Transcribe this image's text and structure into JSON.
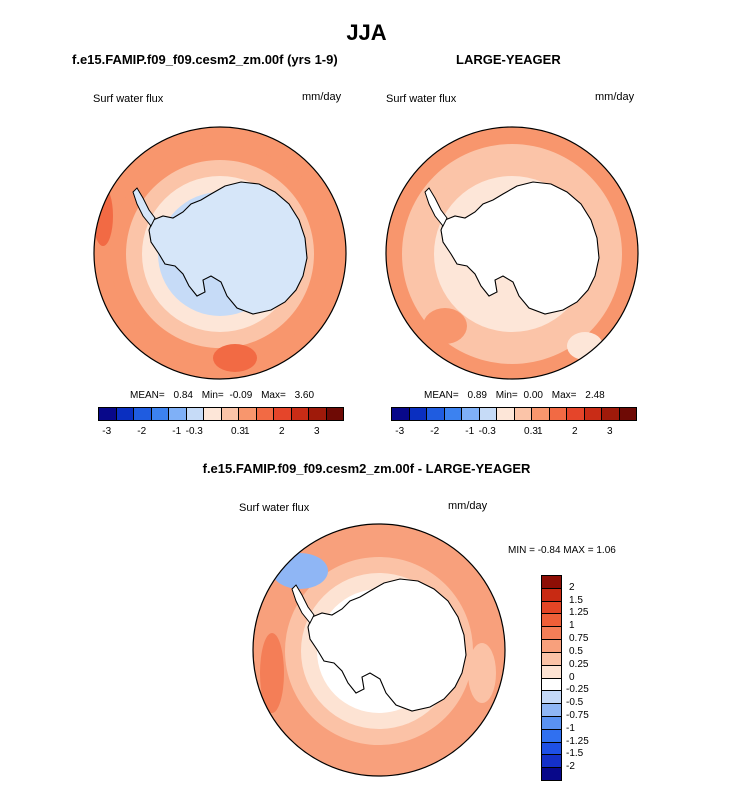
{
  "page": {
    "title": "JJA",
    "left_case": "f.e15.FAMIP.f09_f09.cesm2_zm.00f (yrs 1-9)",
    "right_case": "LARGE-YEAGER",
    "diff_case": "f.e15.FAMIP.f09_f09.cesm2_zm.00f - LARGE-YEAGER"
  },
  "colors": {
    "abs_scale": [
      "#08088a",
      "#0a2fc0",
      "#1f5ce0",
      "#3c82f0",
      "#7fb0f7",
      "#c6dbf7",
      "#fde6d8",
      "#fbc4a8",
      "#f8966d",
      "#f26a44",
      "#e5452a",
      "#c92c16",
      "#9f1a0a",
      "#6e0a05"
    ],
    "diff_scale": [
      "#08088a",
      "#1430c8",
      "#1e50e6",
      "#3070f0",
      "#5a92f2",
      "#8fb6f5",
      "#c4d8f7",
      "#ffffff",
      "#fde3d3",
      "#fbc2a6",
      "#f8a07c",
      "#f47e57",
      "#ef5f38",
      "#e44525",
      "#c82a13",
      "#8e0e05"
    ],
    "coast": "#000000",
    "land_model": "#d6e6f9",
    "land_obs": "#ffffff"
  },
  "panels": [
    {
      "id": "model",
      "var_label": "Surf water flux",
      "units": "mm/day",
      "mean_label": "MEAN=",
      "mean": "0.84",
      "min_label": "Min=",
      "min": "-0.09",
      "max_label": "Max=",
      "max": "3.60"
    },
    {
      "id": "obs",
      "var_label": "Surf water flux",
      "units": "mm/day",
      "mean_label": "MEAN=",
      "mean": "0.89",
      "min_label": "Min=",
      "min": "0.00",
      "max_label": "Max=",
      "max": "2.48"
    },
    {
      "id": "diff",
      "var_label": "Surf water flux",
      "units": "mm/day",
      "minmax_text": "MIN =  -0.84 MAX =   1.06"
    }
  ],
  "colorbar_abs": {
    "ticks": [
      "-3",
      "-2",
      "-1",
      "-0.3",
      "0.3",
      "1",
      "2",
      "3"
    ]
  },
  "colorbar_diff": {
    "ticks": [
      "2",
      "1.5",
      "1.25",
      "1",
      "0.75",
      "0.5",
      "0.25",
      "0",
      "-0.25",
      "-0.5",
      "-0.75",
      "-1",
      "-1.25",
      "-1.5",
      "-2"
    ]
  },
  "chart_data": [
    {
      "type": "heatmap",
      "title": "f.e15.FAMIP.f09_f09.cesm2_zm.00f (yrs 1-9)",
      "projection": "south polar stereographic",
      "variable": "Surf water flux",
      "units": "mm/day",
      "stats": {
        "mean": 0.84,
        "min": -0.09,
        "max": 3.6
      },
      "levels": [
        -3,
        -2,
        -1,
        -0.3,
        0.3,
        1,
        2,
        3
      ],
      "ring_values": [
        0.2,
        0.6,
        1.2,
        2.0,
        2.6
      ]
    },
    {
      "type": "heatmap",
      "title": "LARGE-YEAGER",
      "projection": "south polar stereographic",
      "variable": "Surf water flux",
      "units": "mm/day",
      "stats": {
        "mean": 0.89,
        "min": 0.0,
        "max": 2.48
      },
      "levels": [
        -3,
        -2,
        -1,
        -0.3,
        0.3,
        1,
        2,
        3
      ],
      "ring_values": [
        0.4,
        0.8,
        1.3,
        1.8,
        2.2
      ]
    },
    {
      "type": "heatmap",
      "title": "f.e15.FAMIP.f09_f09.cesm2_zm.00f - LARGE-YEAGER",
      "projection": "south polar stereographic",
      "variable": "Surf water flux",
      "units": "mm/day",
      "stats": {
        "min": -0.84,
        "max": 1.06
      },
      "levels": [
        -2,
        -1.5,
        -1.25,
        -1,
        -0.75,
        -0.5,
        -0.25,
        0,
        0.25,
        0.5,
        0.75,
        1,
        1.25,
        1.5,
        2
      ],
      "ring_values": [
        -0.2,
        0.1,
        0.3,
        0.5,
        0.7
      ]
    }
  ]
}
